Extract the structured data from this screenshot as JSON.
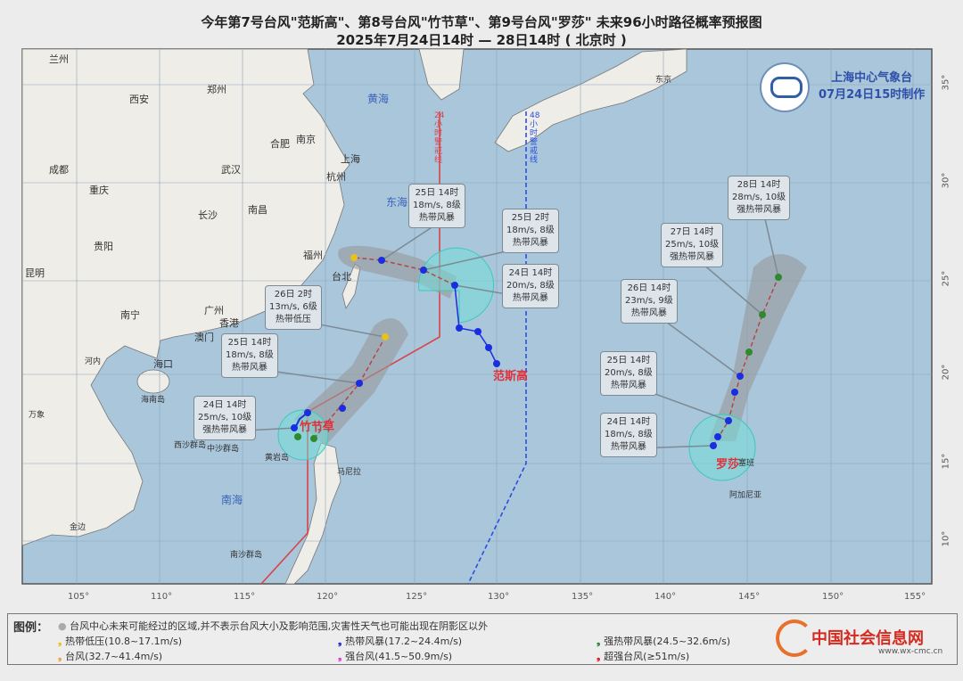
{
  "title": {
    "line1": "今年第7号台风\"范斯高\"、第8号台风\"竹节草\"、第9号台风\"罗莎\" 未来96小时路径概率预报图",
    "line2": "2025年7月24日14时 — 28日14时 ( 北京时 )"
  },
  "agency": {
    "name": "上海中心气象台",
    "made": "07月24日15时制作"
  },
  "lon_ticks": [
    "105°",
    "110°",
    "115°",
    "120°",
    "125°",
    "130°",
    "135°",
    "140°",
    "145°",
    "150°",
    "155°"
  ],
  "lat_ticks": [
    "35°",
    "30°",
    "25°",
    "20°",
    "15°",
    "10°"
  ],
  "seas": {
    "yellow": "黄海",
    "east": "东海",
    "south": "南海"
  },
  "cities": [
    "兰州",
    "西安",
    "郑州",
    "合肥",
    "南京",
    "上海",
    "杭州",
    "武汉",
    "成都",
    "重庆",
    "长沙",
    "南昌",
    "贵阳",
    "福州",
    "昆明",
    "台北",
    "南宁",
    "广州",
    "香港",
    "澳门",
    "海口",
    "河内",
    "海南岛",
    "万象",
    "西沙群岛",
    "中沙群岛",
    "黄岩岛",
    "马尼拉",
    "南沙群岛",
    "金边",
    "东京",
    "塞班",
    "阿加尼亚"
  ],
  "warning_lines": {
    "h24": "24小时警戒线",
    "h48": "48小时警戒线"
  },
  "colors": {
    "h24": "#d9434b",
    "h48": "#2c4fe0",
    "sea": "#a9c6db",
    "land": "#efede8",
    "cone": "#9a9a9a",
    "wind_circle": "#6fe0d8"
  },
  "typhoons": [
    {
      "name": "范斯高",
      "callouts": [
        {
          "time": "25日 14时",
          "wind": "18m/s, 8级",
          "level": "热带风暴"
        },
        {
          "time": "25日 2时",
          "wind": "18m/s, 8级",
          "level": "热带风暴"
        },
        {
          "time": "24日 14时",
          "wind": "20m/s, 8级",
          "level": "热带风暴"
        }
      ]
    },
    {
      "name": "竹节草",
      "callouts": [
        {
          "time": "26日 2时",
          "wind": "13m/s, 6级",
          "level": "热带低压"
        },
        {
          "time": "25日 14时",
          "wind": "18m/s, 8级",
          "level": "热带风暴"
        },
        {
          "time": "24日 14时",
          "wind": "25m/s, 10级",
          "level": "强热带风暴"
        }
      ]
    },
    {
      "name": "罗莎",
      "callouts": [
        {
          "time": "28日 14时",
          "wind": "28m/s, 10级",
          "level": "强热带风暴"
        },
        {
          "time": "27日 14时",
          "wind": "25m/s, 10级",
          "level": "强热带风暴"
        },
        {
          "time": "26日 14时",
          "wind": "23m/s, 9级",
          "level": "热带风暴"
        },
        {
          "time": "25日 14时",
          "wind": "20m/s, 8级",
          "level": "热带风暴"
        },
        {
          "time": "24日 14时",
          "wind": "18m/s, 8级",
          "level": "热带风暴"
        }
      ]
    }
  ],
  "legend": {
    "label": "图例：",
    "note": "台风中心未来可能经过的区域,并不表示台风大小及影响范围,灾害性天气也可能出现在阴影区以外",
    "items": [
      {
        "label": "热带低压(10.8~17.1m/s)",
        "color": "#e8c21c"
      },
      {
        "label": "热带风暴(17.2~24.4m/s)",
        "color": "#1a2ee0"
      },
      {
        "label": "强热带风暴(24.5~32.6m/s)",
        "color": "#2f8a2f"
      },
      {
        "label": "台风(32.7~41.4m/s)",
        "color": "#f0a040"
      },
      {
        "label": "强台风(41.5~50.9m/s)",
        "color": "#e03ad8"
      },
      {
        "label": "超强台风(≥51m/s)",
        "color": "#e02020"
      }
    ]
  },
  "watermark": {
    "name": "中国社会信息网",
    "url": "www.wx-cmc.cn"
  }
}
